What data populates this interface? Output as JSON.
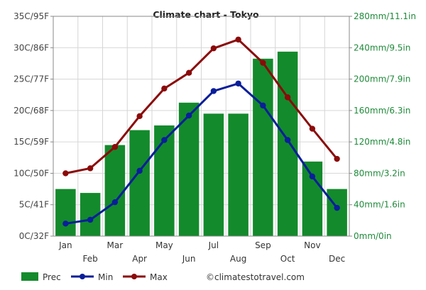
{
  "chart_data": {
    "type": "bar-line-combo",
    "title": "Climate chart - Tokyo",
    "categories": [
      "Jan",
      "Feb",
      "Mar",
      "Apr",
      "May",
      "Jun",
      "Jul",
      "Aug",
      "Sep",
      "Oct",
      "Nov",
      "Dec"
    ],
    "series": [
      {
        "name": "Prec",
        "kind": "bar",
        "axis": "right",
        "unit": "mm",
        "color": "#138a2c",
        "values": [
          60,
          55,
          116,
          135,
          141,
          170,
          156,
          156,
          226,
          235,
          95,
          60
        ]
      },
      {
        "name": "Min",
        "kind": "line",
        "axis": "left",
        "unit": "C",
        "color": "#0a1e9a",
        "values": [
          2.0,
          2.6,
          5.4,
          10.4,
          15.3,
          19.2,
          23.1,
          24.3,
          20.8,
          15.3,
          9.5,
          4.5
        ]
      },
      {
        "name": "Max",
        "kind": "line",
        "axis": "left",
        "unit": "C",
        "color": "#8b0a0a",
        "values": [
          10.0,
          10.8,
          14.2,
          19.1,
          23.5,
          26.0,
          29.9,
          31.3,
          27.6,
          22.1,
          17.1,
          12.3
        ]
      }
    ],
    "left_axis": {
      "ylim": [
        0,
        35
      ],
      "ticks": [
        0,
        5,
        10,
        15,
        20,
        25,
        30,
        35
      ],
      "tick_labels": [
        "0C/32F",
        "5C/41F",
        "10C/50F",
        "15C/59F",
        "20C/68F",
        "25C/77F",
        "30C/86F",
        "35C/95F"
      ]
    },
    "right_axis": {
      "ylim": [
        0,
        280
      ],
      "ticks": [
        0,
        40,
        80,
        120,
        160,
        200,
        240,
        280
      ],
      "tick_labels": [
        "0mm/0in",
        "40mm/1.6in",
        "80mm/3.2in",
        "120mm/4.8in",
        "160mm/6.3in",
        "200mm/7.9in",
        "240mm/9.5in",
        "280mm/11.1in"
      ]
    },
    "grid": true,
    "legend": {
      "position": "bottom-left",
      "items": [
        "Prec",
        "Min",
        "Max"
      ]
    },
    "credit": "©climatestotravel.com"
  }
}
